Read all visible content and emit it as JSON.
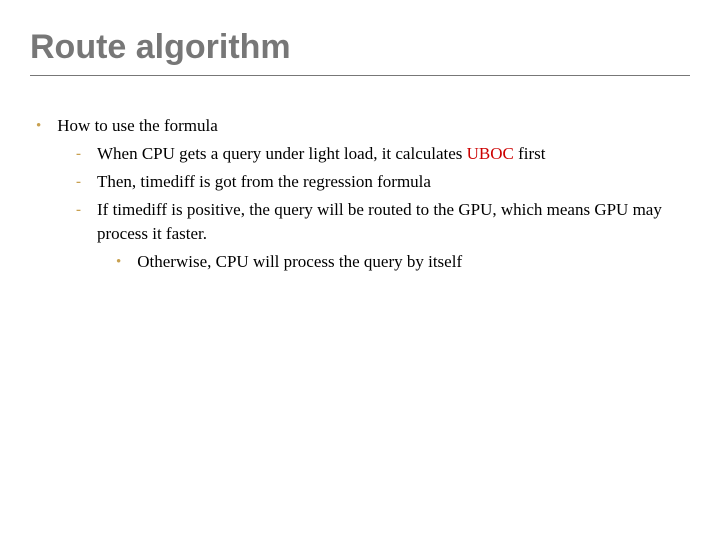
{
  "title": "Route algorithm",
  "colors": {
    "title_color": "#777777",
    "bullet_color": "#c8a050",
    "highlight_color": "#cc0000",
    "text_color": "#000000",
    "background_color": "#ffffff"
  },
  "typography": {
    "title_fontsize": 34,
    "body_fontsize": 17,
    "title_font": "Segoe UI",
    "body_font": "Georgia"
  },
  "content": {
    "level1_text": "How to use the formula",
    "level2_items": [
      {
        "prefix": "When CPU gets a query under light load, it calculates ",
        "highlight": "UBOC",
        "suffix": " first"
      },
      {
        "text": "Then, timediff is got from the regression formula"
      },
      {
        "text": "If timediff is positive, the query will be routed to the GPU, which means GPU may process it faster."
      }
    ],
    "level3_text": "Otherwise, CPU will process the query by itself"
  },
  "bullets": {
    "level1": "•",
    "level2": "-",
    "level3": "•"
  }
}
